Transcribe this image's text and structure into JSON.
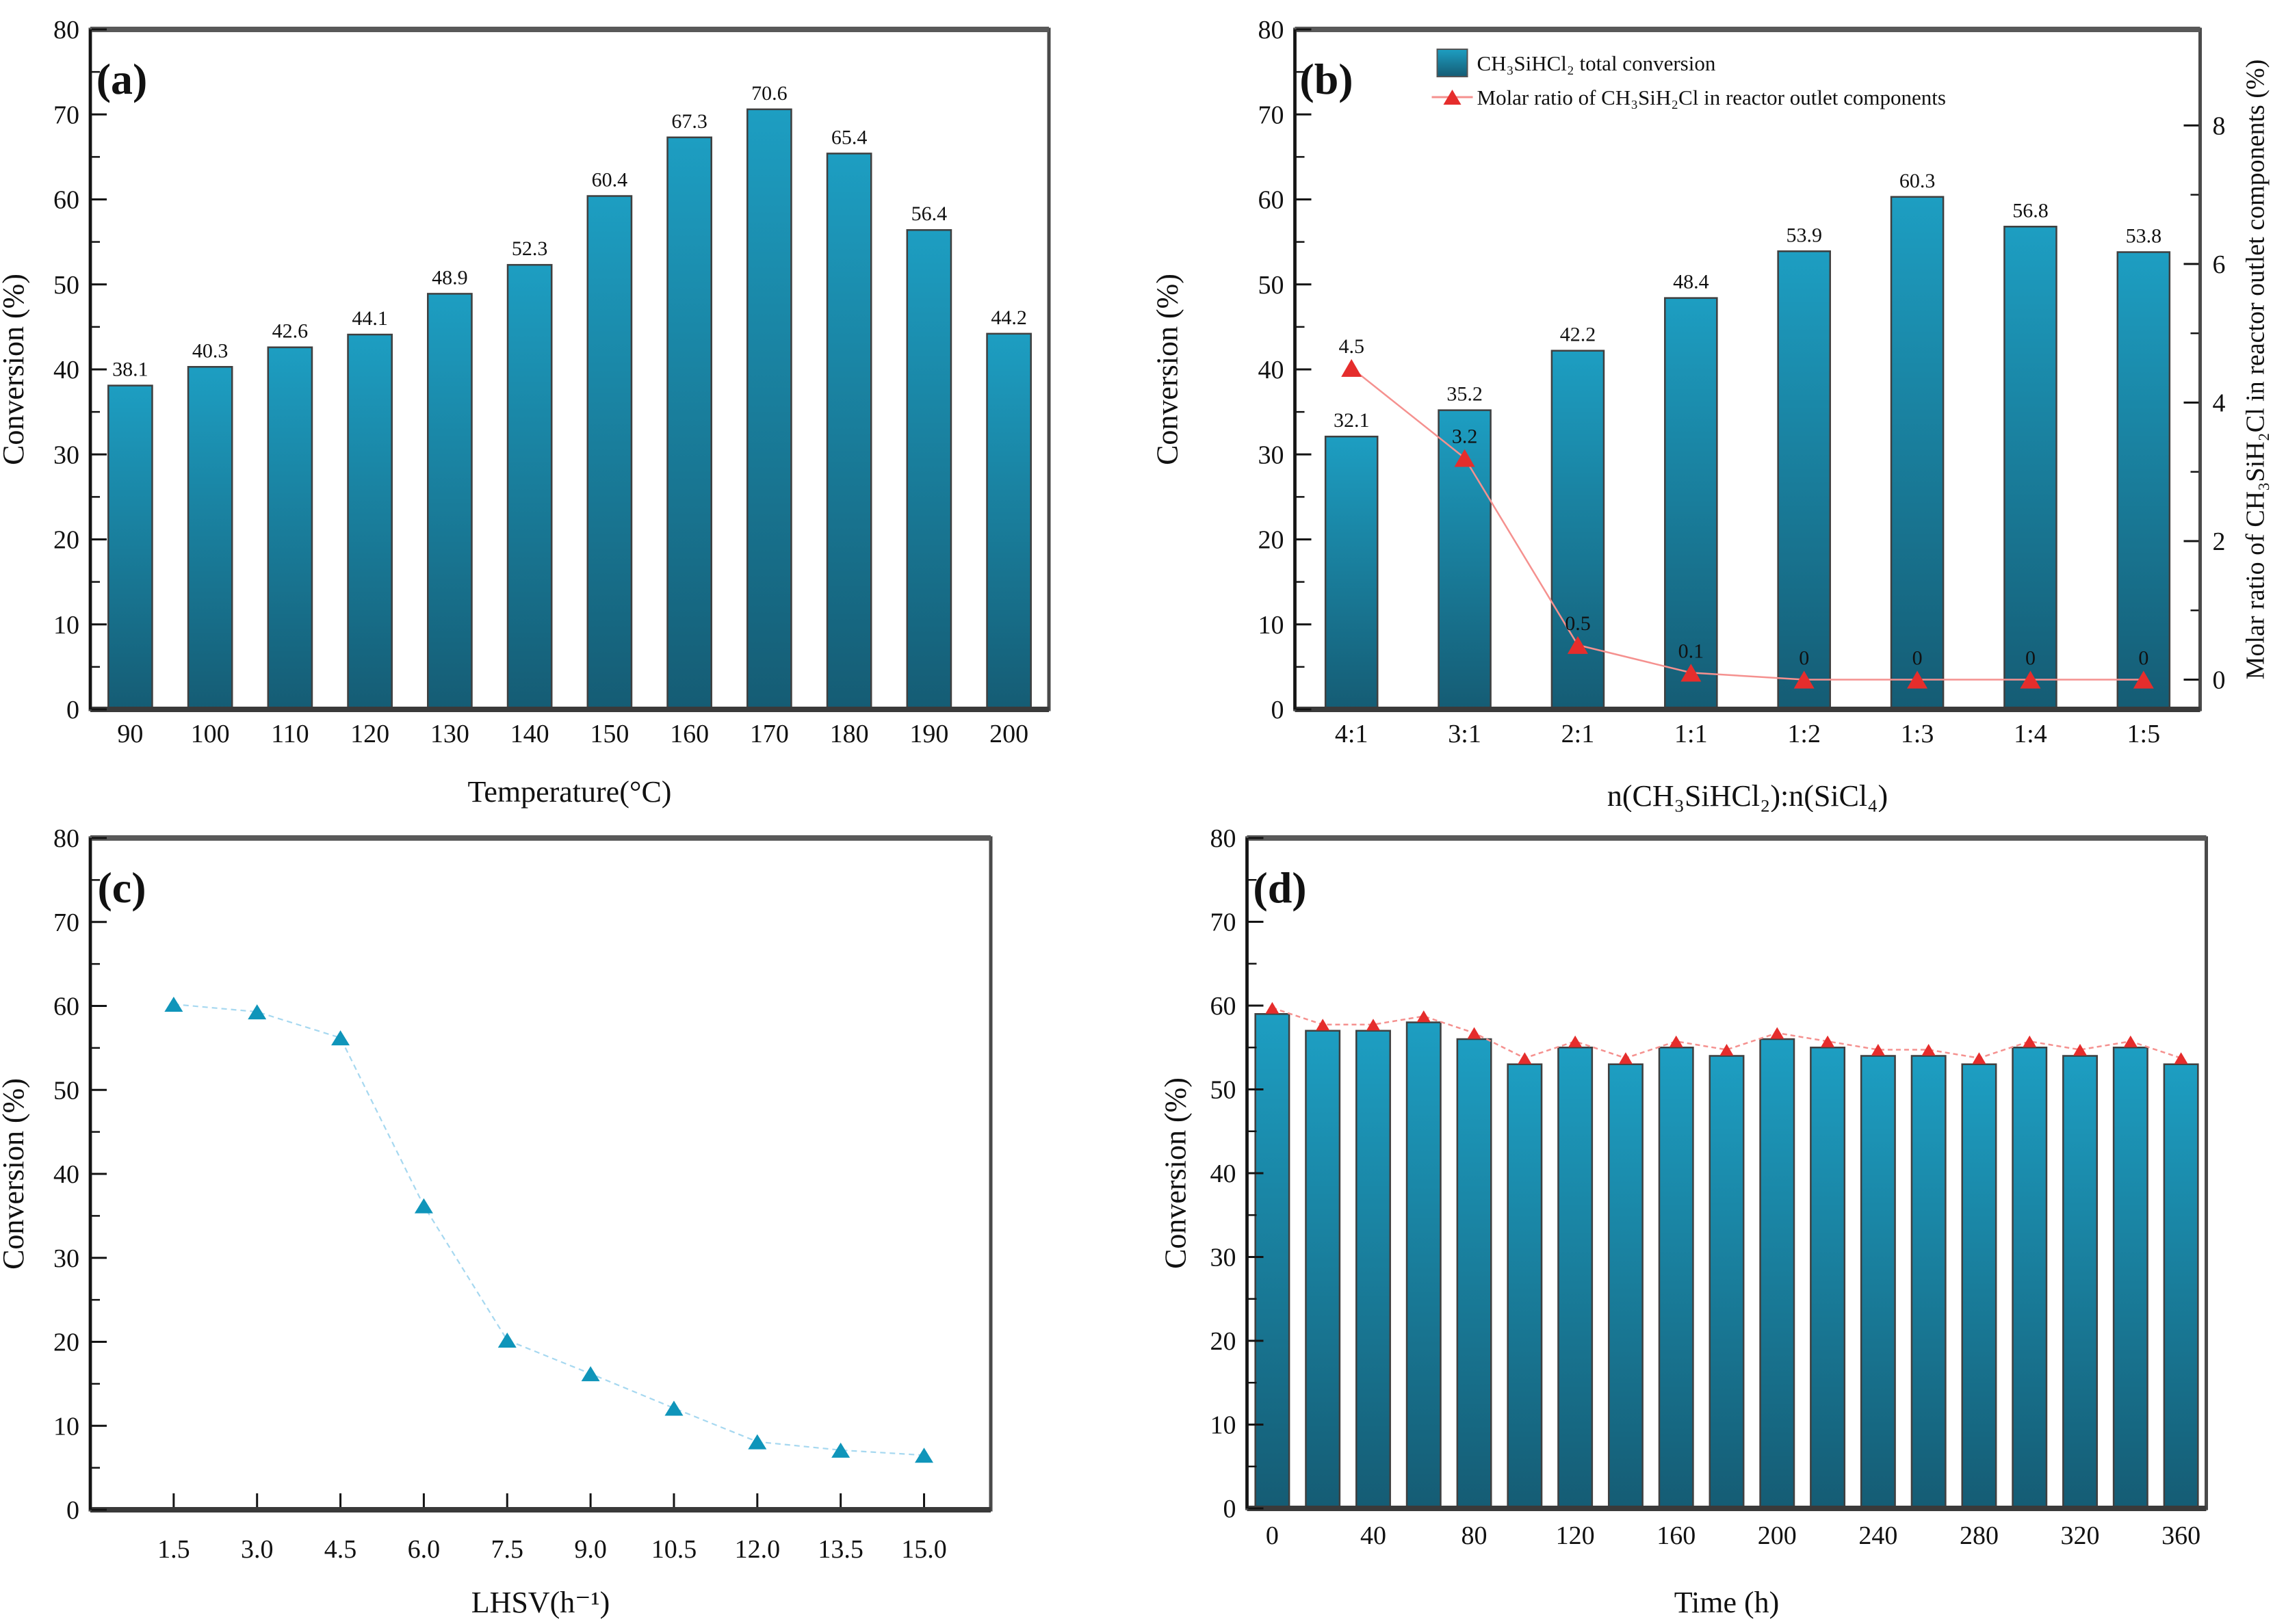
{
  "figure_title": "",
  "colors": {
    "bar_top": "#1d9ec2",
    "bar_bottom": "#155c74",
    "bar_stroke": "#3f3f3f",
    "frame": "#4a4a4a",
    "axis": "#141414",
    "text": "#111111",
    "red_line": "#f5918f",
    "red_marker": "#e52d2c",
    "light_blue_line": "#a6d8f0",
    "teal_marker": "#0f95ba"
  },
  "chart_data": [
    {
      "id": "a",
      "panel_label": "(a)",
      "type": "bar",
      "xlabel": "Temperature(°C)",
      "ylabel": "Conversion (%)",
      "categories": [
        "90",
        "100",
        "110",
        "120",
        "130",
        "140",
        "150",
        "160",
        "170",
        "180",
        "190",
        "200"
      ],
      "values": [
        38.1,
        40.3,
        42.6,
        44.1,
        48.9,
        52.3,
        60.4,
        67.3,
        70.6,
        65.4,
        56.4,
        44.2
      ],
      "value_labels": [
        "38.1",
        "40.3",
        "42.6",
        "44.1",
        "48.9",
        "52.3",
        "60.4",
        "67.3",
        "70.6",
        "65.4",
        "56.4",
        "44.2"
      ],
      "ylim": [
        0,
        80
      ],
      "ytick_step": 10,
      "grid": false
    },
    {
      "id": "b",
      "panel_label": "(b)",
      "type": "bar-line",
      "xlabel": "n(CH₃SiHCl₂):n(SiCl₄)",
      "ylabel": "Conversion (%)",
      "y2label": "Molar ratio of CH₃SiH₂Cl in reactor outlet components (%)",
      "categories": [
        "4:1",
        "3:1",
        "2:1",
        "1:1",
        "1:2",
        "1:3",
        "1:4",
        "1:5"
      ],
      "series": [
        {
          "name": "CH₃SiHCl₂ total conversion",
          "type": "bar",
          "axis": "left",
          "values": [
            32.1,
            35.2,
            42.2,
            48.4,
            53.9,
            60.3,
            56.8,
            53.8
          ],
          "value_labels": [
            "32.1",
            "35.2",
            "42.2",
            "48.4",
            "53.9",
            "60.3",
            "56.8",
            "53.8"
          ]
        },
        {
          "name": "Molar ratio of CH₃SiH₂Cl in reactor outlet components",
          "type": "line",
          "axis": "right",
          "values": [
            4.5,
            3.2,
            0.5,
            0.1,
            0,
            0,
            0,
            0
          ],
          "value_labels": [
            "4.5",
            "3.2",
            "0.5",
            "0.1",
            "0",
            "0",
            "0",
            "0"
          ]
        }
      ],
      "ylim": [
        0,
        80
      ],
      "ytick_step": 10,
      "y2lim": [
        0,
        8
      ],
      "y2ticks": [
        "0",
        "2",
        "4",
        "6",
        "8"
      ],
      "legend_position": "top-right",
      "grid": false
    },
    {
      "id": "c",
      "panel_label": "(c)",
      "type": "line",
      "xlabel": "LHSV(h⁻¹)",
      "ylabel": "Conversion (%)",
      "x": [
        1.5,
        3.0,
        4.5,
        6.0,
        7.5,
        9.0,
        10.5,
        12.0,
        13.5,
        15.0
      ],
      "xtick_labels": [
        "1.5",
        "3.0",
        "4.5",
        "6.0",
        "7.5",
        "9.0",
        "10.5",
        "12.0",
        "13.5",
        "15.0"
      ],
      "y": [
        60.2,
        59.3,
        56.2,
        36.2,
        20.2,
        16.2,
        12.1,
        8.1,
        7.1,
        6.5
      ],
      "ylim": [
        0,
        80
      ],
      "ytick_step": 10,
      "xlim": [
        0,
        16.2
      ],
      "grid": false
    },
    {
      "id": "d",
      "panel_label": "(d)",
      "type": "bar-line",
      "xlabel": "Time (h)",
      "ylabel": "Conversion (%)",
      "x": [
        0,
        20,
        40,
        60,
        80,
        100,
        120,
        140,
        160,
        180,
        200,
        220,
        240,
        260,
        280,
        300,
        320,
        340,
        360
      ],
      "xtick_labels": [
        "0",
        "40",
        "80",
        "120",
        "160",
        "200",
        "240",
        "280",
        "320",
        "360"
      ],
      "values": [
        59,
        57,
        57,
        58,
        56,
        53,
        55,
        53,
        55,
        54,
        56,
        55,
        54,
        54,
        53,
        55,
        54,
        55,
        53
      ],
      "line_values": [
        59,
        57,
        57,
        58,
        56,
        53,
        55,
        53,
        55,
        54,
        56,
        55,
        54,
        54,
        53,
        55,
        54,
        55,
        53
      ],
      "ylim": [
        0,
        80
      ],
      "ytick_step": 10,
      "grid": false
    }
  ]
}
